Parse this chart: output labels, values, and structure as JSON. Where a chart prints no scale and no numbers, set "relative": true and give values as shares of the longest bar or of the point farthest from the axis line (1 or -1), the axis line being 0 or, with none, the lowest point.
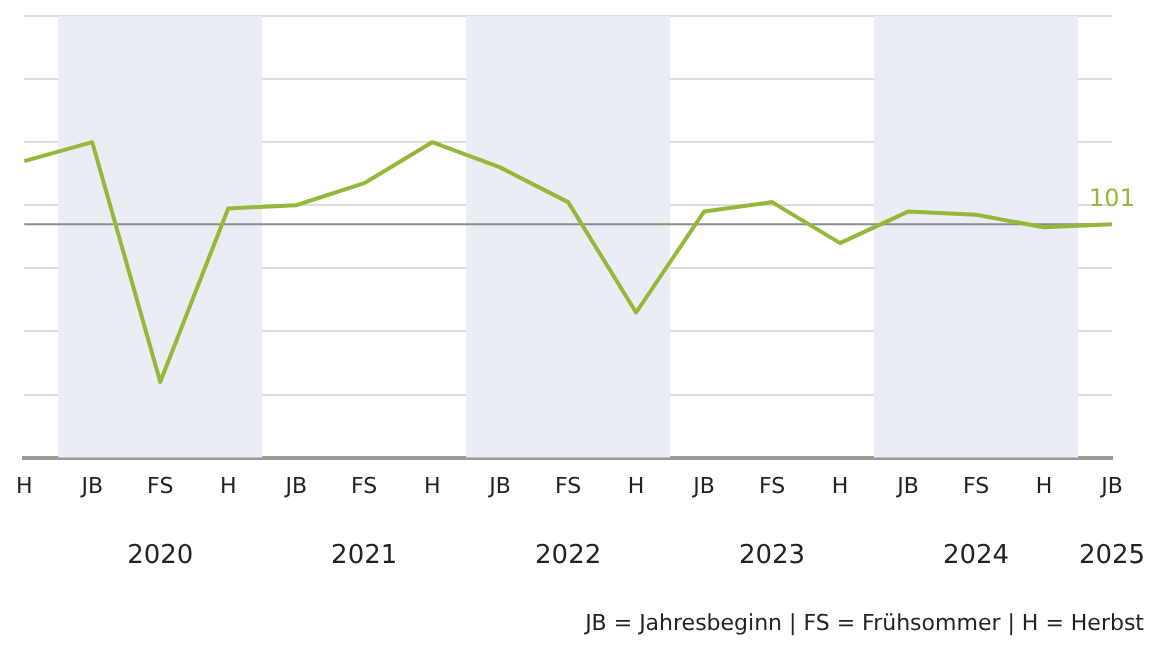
{
  "chart_data": {
    "type": "line",
    "relative": true,
    "categories": [
      "H",
      "JB",
      "FS",
      "H",
      "JB",
      "FS",
      "H",
      "JB",
      "FS",
      "H",
      "JB",
      "FS",
      "H",
      "JB",
      "FS",
      "H",
      "JB"
    ],
    "series": [
      {
        "color": "#95b83a",
        "values": [
          0.94,
          1.0,
          0.24,
          0.79,
          0.8,
          0.87,
          1.0,
          0.92,
          0.81,
          0.46,
          0.78,
          0.81,
          0.68,
          0.78,
          0.77,
          0.73,
          0.74
        ]
      }
    ],
    "ref_lines": [
      {
        "axis": "y",
        "value": 0.74,
        "color": "#8c8c8c"
      }
    ],
    "annotations": [
      "2020",
      "2021",
      "2022",
      "2023",
      "2024",
      "2025",
      {
        "text": "101",
        "y": 0.74
      },
      "JB = Jahresbeginn | FS = Frühsommer | H = Herbst"
    ],
    "grid": "y",
    "legend": false,
    "marker": "none",
    "line_style": "solid"
  }
}
